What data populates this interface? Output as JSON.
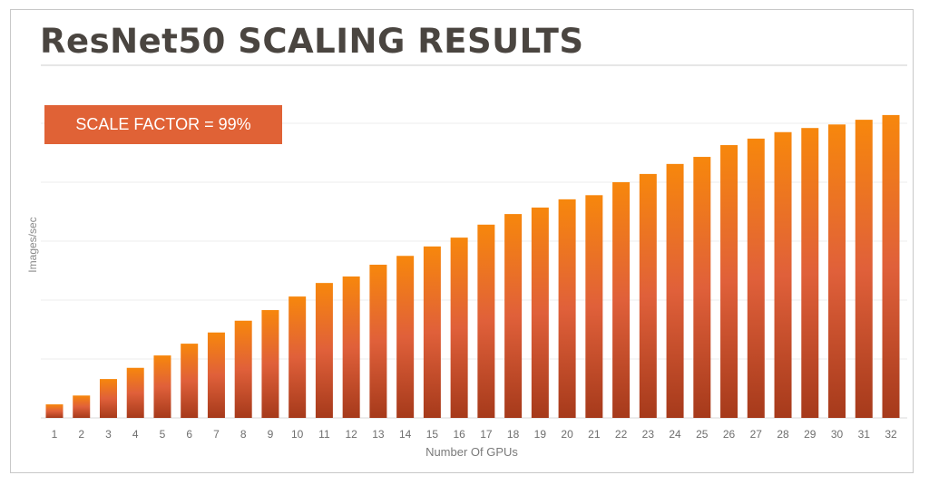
{
  "chart_data": {
    "type": "bar",
    "title": "ResNet50 SCALING RESULTS",
    "annotation": "SCALE FACTOR = 99%",
    "xlabel": "Number Of GPUs",
    "ylabel": "Images/sec",
    "categories": [
      "1",
      "2",
      "3",
      "4",
      "5",
      "6",
      "7",
      "8",
      "9",
      "10",
      "11",
      "12",
      "13",
      "14",
      "15",
      "16",
      "17",
      "18",
      "19",
      "20",
      "21",
      "22",
      "23",
      "24",
      "25",
      "26",
      "27",
      "28",
      "29",
      "30",
      "31",
      "32"
    ],
    "values": [
      0.23,
      0.38,
      0.66,
      0.85,
      1.06,
      1.26,
      1.45,
      1.65,
      1.83,
      2.06,
      2.29,
      2.4,
      2.6,
      2.75,
      2.91,
      3.06,
      3.28,
      3.46,
      3.57,
      3.71,
      3.78,
      4.0,
      4.14,
      4.31,
      4.43,
      4.63,
      4.74,
      4.85,
      4.92,
      4.98,
      5.06,
      5.14
    ],
    "value_units_note": "relative to gridline spacing (no y tick labels shown)",
    "ylim": [
      0,
      5.2
    ],
    "grid": true,
    "colors": {
      "bar_top": "#f7870c",
      "bar_mid": "#e0603a",
      "bar_bottom": "#a63a1b",
      "callout": "#e06236",
      "title": "#4a4540"
    }
  }
}
